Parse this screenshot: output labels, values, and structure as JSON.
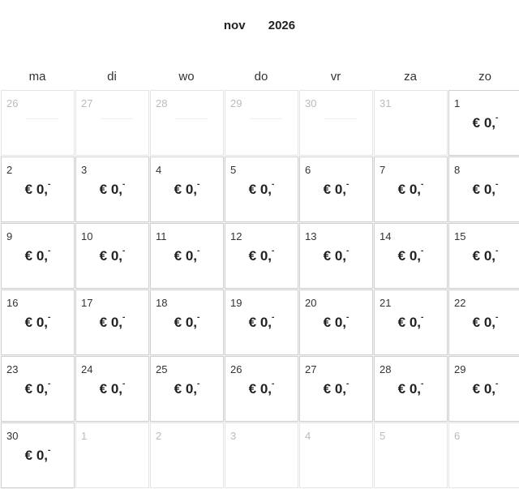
{
  "header": {
    "month": "nov",
    "year": "2026"
  },
  "weekdays": [
    "ma",
    "di",
    "wo",
    "do",
    "vr",
    "za",
    "zo"
  ],
  "price_label": "€ 0,",
  "price_suffix": "-",
  "cells": [
    {
      "day": "26",
      "state": "past"
    },
    {
      "day": "27",
      "state": "past"
    },
    {
      "day": "28",
      "state": "past"
    },
    {
      "day": "29",
      "state": "past"
    },
    {
      "day": "30",
      "state": "past"
    },
    {
      "day": "31",
      "state": "out"
    },
    {
      "day": "1",
      "state": "active"
    },
    {
      "day": "2",
      "state": "active"
    },
    {
      "day": "3",
      "state": "active"
    },
    {
      "day": "4",
      "state": "active"
    },
    {
      "day": "5",
      "state": "active"
    },
    {
      "day": "6",
      "state": "active"
    },
    {
      "day": "7",
      "state": "active"
    },
    {
      "day": "8",
      "state": "active"
    },
    {
      "day": "9",
      "state": "active"
    },
    {
      "day": "10",
      "state": "active"
    },
    {
      "day": "11",
      "state": "active"
    },
    {
      "day": "12",
      "state": "active"
    },
    {
      "day": "13",
      "state": "active"
    },
    {
      "day": "14",
      "state": "active"
    },
    {
      "day": "15",
      "state": "active"
    },
    {
      "day": "16",
      "state": "active"
    },
    {
      "day": "17",
      "state": "active"
    },
    {
      "day": "18",
      "state": "active"
    },
    {
      "day": "19",
      "state": "active"
    },
    {
      "day": "20",
      "state": "active"
    },
    {
      "day": "21",
      "state": "active"
    },
    {
      "day": "22",
      "state": "active"
    },
    {
      "day": "23",
      "state": "active"
    },
    {
      "day": "24",
      "state": "active"
    },
    {
      "day": "25",
      "state": "active"
    },
    {
      "day": "26",
      "state": "active"
    },
    {
      "day": "27",
      "state": "active"
    },
    {
      "day": "28",
      "state": "active"
    },
    {
      "day": "29",
      "state": "active"
    },
    {
      "day": "30",
      "state": "active"
    },
    {
      "day": "1",
      "state": "out"
    },
    {
      "day": "2",
      "state": "out"
    },
    {
      "day": "3",
      "state": "out"
    },
    {
      "day": "4",
      "state": "out"
    },
    {
      "day": "5",
      "state": "out"
    },
    {
      "day": "6",
      "state": "out"
    }
  ]
}
